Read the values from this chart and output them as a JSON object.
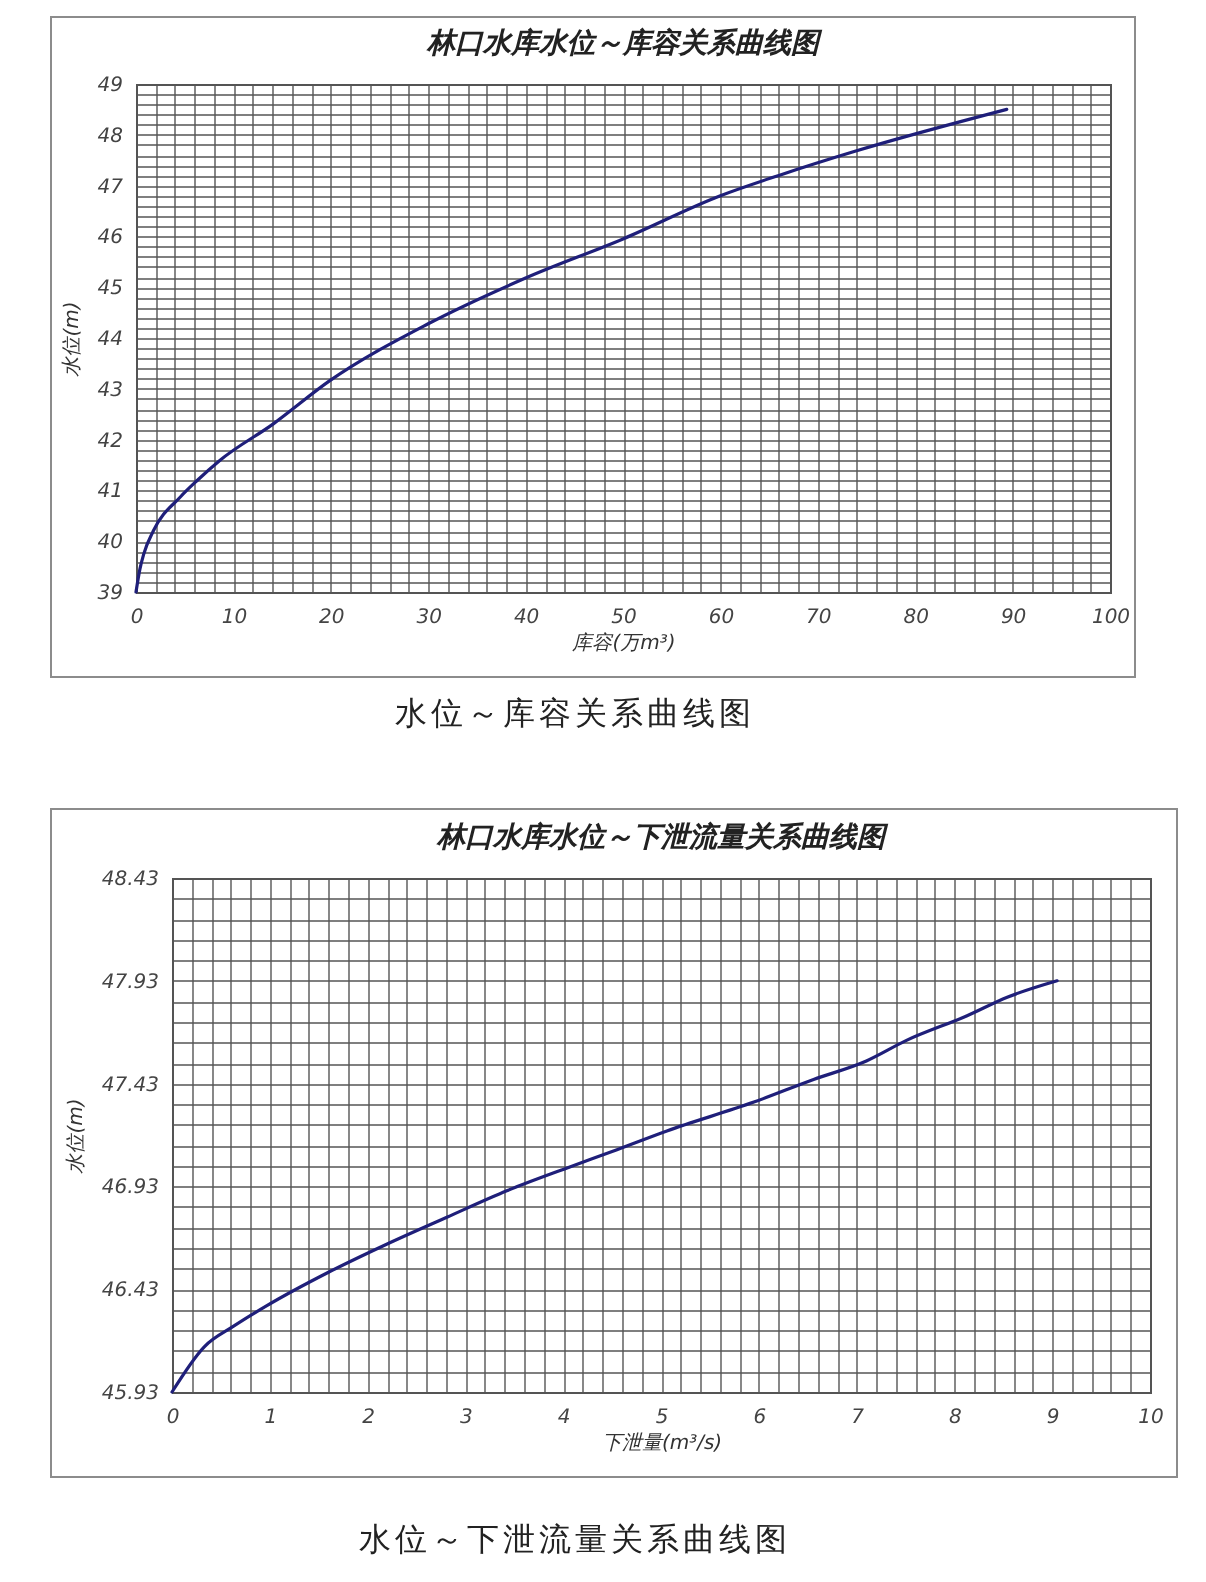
{
  "chart_data": [
    {
      "type": "line",
      "title": "林口水库水位～库容关系曲线图",
      "xlabel": "库容(万m³)",
      "ylabel": "水位(m)",
      "annotations": [
        "水位～库容关系曲线图"
      ],
      "grid": true,
      "x": [
        0,
        0.4,
        0.8,
        1.8,
        4.55,
        6.25,
        8.6,
        14.1,
        19.9,
        30,
        40,
        50,
        60,
        66,
        73.9,
        89.4
      ],
      "series": [
        {
          "color": "#1f1f7a",
          "values": [
            39,
            39.45,
            39.75,
            40.21,
            40.87,
            41.19,
            41.59,
            42.31,
            43.16,
            44.28,
            45.18,
            45.95,
            46.8,
            47.2,
            47.68,
            48.5
          ]
        }
      ],
      "xlim": [
        0,
        100
      ],
      "ylim": [
        39,
        49
      ],
      "xticks": [
        0,
        {
          "value": 2,
          "label": null
        },
        {
          "value": 4,
          "label": null
        },
        {
          "value": 6,
          "label": null
        },
        {
          "value": 8,
          "label": null
        },
        10,
        {
          "value": 12,
          "label": null
        },
        {
          "value": 14,
          "label": null
        },
        {
          "value": 16,
          "label": null
        },
        {
          "value": 18,
          "label": null
        },
        20,
        {
          "value": 22,
          "label": null
        },
        {
          "value": 24,
          "label": null
        },
        {
          "value": 26,
          "label": null
        },
        {
          "value": 28,
          "label": null
        },
        30,
        {
          "value": 32,
          "label": null
        },
        {
          "value": 34,
          "label": null
        },
        {
          "value": 36,
          "label": null
        },
        {
          "value": 38,
          "label": null
        },
        40,
        {
          "value": 42,
          "label": null
        },
        {
          "value": 44,
          "label": null
        },
        {
          "value": 46,
          "label": null
        },
        {
          "value": 48,
          "label": null
        },
        50,
        {
          "value": 52,
          "label": null
        },
        {
          "value": 54,
          "label": null
        },
        {
          "value": 56,
          "label": null
        },
        {
          "value": 58,
          "label": null
        },
        60,
        {
          "value": 62,
          "label": null
        },
        {
          "value": 64,
          "label": null
        },
        {
          "value": 66,
          "label": null
        },
        {
          "value": 68,
          "label": null
        },
        70,
        {
          "value": 72,
          "label": null
        },
        {
          "value": 74,
          "label": null
        },
        {
          "value": 76,
          "label": null
        },
        {
          "value": 78,
          "label": null
        },
        80,
        {
          "value": 82,
          "label": null
        },
        {
          "value": 84,
          "label": null
        },
        {
          "value": 86,
          "label": null
        },
        {
          "value": 88,
          "label": null
        },
        90,
        {
          "value": 92,
          "label": null
        },
        {
          "value": 94,
          "label": null
        },
        {
          "value": 96,
          "label": null
        },
        {
          "value": 98,
          "label": null
        },
        100
      ],
      "yticks": [
        39,
        {
          "value": 39.2,
          "label": null
        },
        {
          "value": 39.4,
          "label": null
        },
        {
          "value": 39.6,
          "label": null
        },
        {
          "value": 39.8,
          "label": null
        },
        40,
        {
          "value": 40.2,
          "label": null
        },
        {
          "value": 40.4,
          "label": null
        },
        {
          "value": 40.6,
          "label": null
        },
        {
          "value": 40.8,
          "label": null
        },
        41,
        {
          "value": 41.2,
          "label": null
        },
        {
          "value": 41.4,
          "label": null
        },
        {
          "value": 41.6,
          "label": null
        },
        {
          "value": 41.8,
          "label": null
        },
        42,
        {
          "value": 42.2,
          "label": null
        },
        {
          "value": 42.4,
          "label": null
        },
        {
          "value": 42.6,
          "label": null
        },
        {
          "value": 42.8,
          "label": null
        },
        43,
        {
          "value": 43.2,
          "label": null
        },
        {
          "value": 43.4,
          "label": null
        },
        {
          "value": 43.6,
          "label": null
        },
        {
          "value": 43.8,
          "label": null
        },
        44,
        {
          "value": 44.2,
          "label": null
        },
        {
          "value": 44.4,
          "label": null
        },
        {
          "value": 44.6,
          "label": null
        },
        {
          "value": 44.8,
          "label": null
        },
        45,
        {
          "value": 45.2,
          "label": null
        },
        {
          "value": 45.4,
          "label": null
        },
        {
          "value": 45.6,
          "label": null
        },
        {
          "value": 45.8,
          "label": null
        },
        46,
        {
          "value": 46.2,
          "label": null
        },
        {
          "value": 46.4,
          "label": null
        },
        {
          "value": 46.6,
          "label": null
        },
        {
          "value": 46.8,
          "label": null
        },
        47,
        {
          "value": 47.2,
          "label": null
        },
        {
          "value": 47.4,
          "label": null
        },
        {
          "value": 47.6,
          "label": null
        },
        {
          "value": 47.8,
          "label": null
        },
        48,
        {
          "value": 48.2,
          "label": null
        },
        {
          "value": 48.4,
          "label": null
        },
        {
          "value": 48.6,
          "label": null
        },
        {
          "value": 48.8,
          "label": null
        },
        49
      ]
    },
    {
      "type": "line",
      "title": "林口水库水位～下泄流量关系曲线图",
      "xlabel": "下泄量(m³/s)",
      "ylabel": "水位(m)",
      "annotations": [
        "水位～下泄流量关系曲线图"
      ],
      "grid": true,
      "x": [
        0,
        0.33,
        0.63,
        0.97,
        1.59,
        2.2,
        2.81,
        3.43,
        4.04,
        4.5,
        5.06,
        5.95,
        6.56,
        7.1,
        7.51,
        8.13,
        8.54,
        9.05
      ],
      "series": [
        {
          "color": "#1f1f7a",
          "values": [
            45.93,
            46.15,
            46.25,
            46.35,
            46.51,
            46.65,
            46.78,
            46.91,
            47.02,
            47.1,
            47.2,
            47.34,
            47.45,
            47.54,
            47.64,
            47.76,
            47.85,
            47.93
          ]
        }
      ],
      "xlim": [
        0,
        10
      ],
      "ylim": [
        45.93,
        48.43
      ],
      "xticks": [
        0,
        {
          "value": 0.2,
          "label": null
        },
        {
          "value": 0.4,
          "label": null
        },
        {
          "value": 0.6,
          "label": null
        },
        {
          "value": 0.8,
          "label": null
        },
        1,
        {
          "value": 1.2,
          "label": null
        },
        {
          "value": 1.4,
          "label": null
        },
        {
          "value": 1.6,
          "label": null
        },
        {
          "value": 1.8,
          "label": null
        },
        2,
        {
          "value": 2.2,
          "label": null
        },
        {
          "value": 2.4,
          "label": null
        },
        {
          "value": 2.6,
          "label": null
        },
        {
          "value": 2.8,
          "label": null
        },
        3,
        {
          "value": 3.2,
          "label": null
        },
        {
          "value": 3.4,
          "label": null
        },
        {
          "value": 3.6,
          "label": null
        },
        {
          "value": 3.8,
          "label": null
        },
        4,
        {
          "value": 4.2,
          "label": null
        },
        {
          "value": 4.4,
          "label": null
        },
        {
          "value": 4.6,
          "label": null
        },
        {
          "value": 4.8,
          "label": null
        },
        5,
        {
          "value": 5.2,
          "label": null
        },
        {
          "value": 5.4,
          "label": null
        },
        {
          "value": 5.6,
          "label": null
        },
        {
          "value": 5.8,
          "label": null
        },
        6,
        {
          "value": 6.2,
          "label": null
        },
        {
          "value": 6.4,
          "label": null
        },
        {
          "value": 6.6,
          "label": null
        },
        {
          "value": 6.8,
          "label": null
        },
        7,
        {
          "value": 7.2,
          "label": null
        },
        {
          "value": 7.4,
          "label": null
        },
        {
          "value": 7.6,
          "label": null
        },
        {
          "value": 7.8,
          "label": null
        },
        8,
        {
          "value": 8.2,
          "label": null
        },
        {
          "value": 8.4,
          "label": null
        },
        {
          "value": 8.6,
          "label": null
        },
        {
          "value": 8.8,
          "label": null
        },
        9,
        {
          "value": 9.2,
          "label": null
        },
        {
          "value": 9.4,
          "label": null
        },
        {
          "value": 9.6,
          "label": null
        },
        {
          "value": 9.8,
          "label": null
        },
        10
      ],
      "yticks": [
        45.93,
        {
          "value": 46.03,
          "label": null
        },
        {
          "value": 46.13,
          "label": null
        },
        {
          "value": 46.23,
          "label": null
        },
        {
          "value": 46.33,
          "label": null
        },
        46.43,
        {
          "value": 46.53,
          "label": null
        },
        {
          "value": 46.63,
          "label": null
        },
        {
          "value": 46.73,
          "label": null
        },
        {
          "value": 46.83,
          "label": null
        },
        46.93,
        {
          "value": 47.03,
          "label": null
        },
        {
          "value": 47.13,
          "label": null
        },
        {
          "value": 47.23,
          "label": null
        },
        {
          "value": 47.33,
          "label": null
        },
        47.43,
        {
          "value": 47.53,
          "label": null
        },
        {
          "value": 47.63,
          "label": null
        },
        {
          "value": 47.73,
          "label": null
        },
        {
          "value": 47.83,
          "label": null
        },
        47.93,
        {
          "value": 48.03,
          "label": null
        },
        {
          "value": 48.13,
          "label": null
        },
        {
          "value": 48.23,
          "label": null
        },
        {
          "value": 48.33,
          "label": null
        },
        48.43
      ]
    }
  ]
}
